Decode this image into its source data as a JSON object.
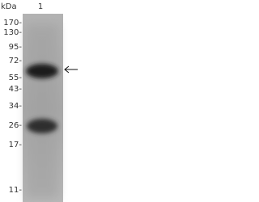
{
  "blot": {
    "unit_label": "kDa",
    "lane_label": "1",
    "markers": [
      "170-",
      "130-",
      "95-",
      "72-",
      "55-",
      "43-",
      "34-",
      "26-",
      "17-",
      "11-"
    ]
  }
}
